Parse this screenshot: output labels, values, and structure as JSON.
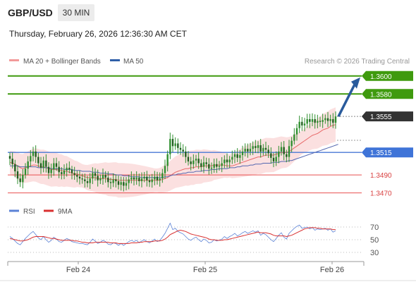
{
  "header": {
    "symbol": "GBP/USD",
    "timeframe": "30 MIN",
    "datetime": "Thursday, February 26, 2026 12:36:30 AM CET"
  },
  "legend": {
    "ma20_label": "MA 20 + Bollinger Bands",
    "ma50_label": "MA 50",
    "credit": "Research © 2026 Trading Central",
    "rsi_label": "RSI",
    "rsi_ma_label": "9MA"
  },
  "colors": {
    "resistance": "#3f9a0e",
    "current": "#333333",
    "pivot": "#4a78d6",
    "support": "#e85050",
    "ma20": "#e86a6a",
    "ma50": "#5567b0",
    "band_fill": "#fadada",
    "candle": "#2f8f2f",
    "arrow": "#2a5b9c",
    "rsi": "#5b82d6",
    "rsi_ma": "#d93030"
  },
  "chart_data": [
    {
      "type": "candlestick",
      "price_range": [
        1.3465,
        1.361
      ],
      "levels": [
        {
          "label": "1.3600",
          "value": 1.36,
          "kind": "resistance"
        },
        {
          "label": "1.3580",
          "value": 1.358,
          "kind": "resistance"
        },
        {
          "label": "1.3555",
          "value": 1.3555,
          "kind": "current"
        },
        {
          "label": "1.3515",
          "value": 1.3515,
          "kind": "pivot"
        },
        {
          "label": "1.3490",
          "value": 1.349,
          "kind": "support"
        },
        {
          "label": "1.3470",
          "value": 1.347,
          "kind": "support"
        }
      ],
      "x_ticks": [
        "Feb 24",
        "Feb 25",
        "Feb 26"
      ],
      "arrow_target": 1.36,
      "closes": [
        1.3508,
        1.3502,
        1.3494,
        1.3486,
        1.3482,
        1.349,
        1.3497,
        1.3505,
        1.3511,
        1.3516,
        1.351,
        1.3503,
        1.3498,
        1.3506,
        1.3499,
        1.3492,
        1.3496,
        1.3503,
        1.3499,
        1.3493,
        1.3491,
        1.3495,
        1.3498,
        1.3496,
        1.3492,
        1.349,
        1.3488,
        1.3486,
        1.3485,
        1.3483,
        1.3481,
        1.3486,
        1.3492,
        1.3489,
        1.3484,
        1.3486,
        1.349,
        1.3487,
        1.3482,
        1.3481,
        1.3485,
        1.3483,
        1.3479,
        1.3482,
        1.3478,
        1.3481,
        1.3485,
        1.3487,
        1.3485,
        1.3487,
        1.3483,
        1.3486,
        1.3488,
        1.3484,
        1.3482,
        1.3485,
        1.3488,
        1.3484,
        1.3486,
        1.3492,
        1.35,
        1.3513,
        1.353,
        1.3522,
        1.3525,
        1.352,
        1.3518,
        1.3516,
        1.351,
        1.3505,
        1.3502,
        1.3506,
        1.3508,
        1.3503,
        1.3499,
        1.3504,
        1.3502,
        1.3497,
        1.3498,
        1.3502,
        1.3499,
        1.35,
        1.3503,
        1.3507,
        1.3504,
        1.3507,
        1.351,
        1.3513,
        1.3509,
        1.3512,
        1.3516,
        1.3519,
        1.3516,
        1.3519,
        1.3522,
        1.352,
        1.3523,
        1.3516,
        1.352,
        1.3518,
        1.3514,
        1.3509,
        1.3505,
        1.351,
        1.3516,
        1.3521,
        1.3513,
        1.351,
        1.3522,
        1.3528,
        1.3535,
        1.3542,
        1.3549,
        1.3545,
        1.3547,
        1.3552,
        1.3549,
        1.3552,
        1.3548,
        1.355,
        1.3549,
        1.3551,
        1.3553,
        1.355,
        1.3552,
        1.3548,
        1.3555
      ],
      "ma20": [
        1.3504,
        1.3503,
        1.3502,
        1.35,
        1.3498,
        1.3497,
        1.3498,
        1.3499,
        1.35,
        1.3501,
        1.3501,
        1.35,
        1.3499,
        1.3499,
        1.3498,
        1.3497,
        1.3496,
        1.3496,
        1.3496,
        1.3495,
        1.3495,
        1.3494,
        1.3494,
        1.3493,
        1.3492,
        1.3491,
        1.3491,
        1.349,
        1.3489,
        1.3488,
        1.3487,
        1.3487,
        1.3487,
        1.3487,
        1.3486,
        1.3486,
        1.3486,
        1.3486,
        1.3485,
        1.3485,
        1.3485,
        1.3485,
        1.3484,
        1.3484,
        1.3484,
        1.3484,
        1.3484,
        1.3484,
        1.3484,
        1.3484,
        1.3484,
        1.3484,
        1.3484,
        1.3484,
        1.3484,
        1.3484,
        1.3484,
        1.3484,
        1.3484,
        1.3485,
        1.3486,
        1.3487,
        1.3489,
        1.3491,
        1.3493,
        1.3494,
        1.3495,
        1.3496,
        1.3497,
        1.3497,
        1.3498,
        1.3498,
        1.3499,
        1.3499,
        1.3499,
        1.35,
        1.35,
        1.35,
        1.35,
        1.3501,
        1.3501,
        1.3501,
        1.3501,
        1.3501,
        1.35,
        1.35,
        1.35,
        1.3501,
        1.3502,
        1.3503,
        1.3504,
        1.3505,
        1.3506,
        1.3507,
        1.3508,
        1.3509,
        1.351,
        1.351,
        1.3511,
        1.3512,
        1.3512,
        1.3512,
        1.3512,
        1.3513,
        1.3514,
        1.3515,
        1.3515,
        1.3515,
        1.3516,
        1.3518,
        1.352,
        1.3522,
        1.3524,
        1.3526,
        1.3528,
        1.353,
        1.3532,
        1.3534,
        1.3535,
        1.3536,
        1.3538,
        1.354,
        1.3541,
        1.3542,
        1.3544,
        1.3545,
        1.3546
      ],
      "ma50": [
        1.35,
        1.35,
        1.35,
        1.35,
        1.3499,
        1.3499,
        1.3499,
        1.3499,
        1.3499,
        1.3499,
        1.3499,
        1.3498,
        1.3498,
        1.3498,
        1.3498,
        1.3498,
        1.3497,
        1.3497,
        1.3497,
        1.3497,
        1.3497,
        1.3496,
        1.3496,
        1.3496,
        1.3496,
        1.3495,
        1.3495,
        1.3495,
        1.3494,
        1.3494,
        1.3494,
        1.3494,
        1.3493,
        1.3493,
        1.3493,
        1.3492,
        1.3492,
        1.3492,
        1.3491,
        1.3491,
        1.3491,
        1.349,
        1.349,
        1.349,
        1.3489,
        1.3489,
        1.3489,
        1.3488,
        1.3488,
        1.3488,
        1.3488,
        1.3487,
        1.3487,
        1.3487,
        1.3487,
        1.3487,
        1.3487,
        1.3487,
        1.3487,
        1.3487,
        1.3488,
        1.3488,
        1.3489,
        1.349,
        1.349,
        1.3491,
        1.3491,
        1.3492,
        1.3492,
        1.3493,
        1.3493,
        1.3493,
        1.3494,
        1.3494,
        1.3494,
        1.3495,
        1.3495,
        1.3495,
        1.3496,
        1.3496,
        1.3496,
        1.3497,
        1.3497,
        1.3497,
        1.3497,
        1.3498,
        1.3498,
        1.3498,
        1.3499,
        1.3499,
        1.35,
        1.35,
        1.35,
        1.3501,
        1.3501,
        1.3502,
        1.3502,
        1.3502,
        1.3503,
        1.3503,
        1.3503,
        1.3503,
        1.3504,
        1.3504,
        1.3504,
        1.3505,
        1.3505,
        1.3505,
        1.3506,
        1.3506,
        1.3507,
        1.3508,
        1.3509,
        1.351,
        1.3511,
        1.3512,
        1.3513,
        1.3514,
        1.3515,
        1.3516,
        1.3517,
        1.3518,
        1.3519,
        1.352,
        1.3521,
        1.3522,
        1.3523,
        1.3524
      ],
      "band_width": 0.0016
    },
    {
      "type": "line",
      "title": "RSI",
      "y_ticks": [
        70,
        50,
        30
      ],
      "ylim": [
        20,
        80
      ],
      "rsi": [
        55,
        52,
        48,
        44,
        42,
        47,
        52,
        56,
        60,
        63,
        58,
        53,
        50,
        55,
        50,
        46,
        49,
        54,
        51,
        47,
        46,
        49,
        52,
        50,
        47,
        46,
        45,
        44,
        44,
        43,
        42,
        46,
        51,
        48,
        44,
        46,
        49,
        47,
        43,
        42,
        45,
        44,
        41,
        44,
        41,
        44,
        47,
        49,
        47,
        49,
        45,
        48,
        50,
        47,
        45,
        48,
        51,
        47,
        49,
        54,
        60,
        68,
        76,
        66,
        68,
        63,
        61,
        59,
        55,
        51,
        49,
        52,
        54,
        50,
        47,
        51,
        49,
        45,
        46,
        50,
        48,
        49,
        51,
        55,
        52,
        55,
        57,
        60,
        56,
        58,
        61,
        63,
        60,
        62,
        64,
        62,
        64,
        57,
        60,
        58,
        54,
        50,
        47,
        52,
        57,
        61,
        54,
        51,
        60,
        64,
        68,
        71,
        73,
        68,
        69,
        70,
        67,
        69,
        65,
        67,
        66,
        67,
        68,
        65,
        67,
        62,
        64
      ],
      "rsi_ma": [
        52,
        51,
        50,
        49,
        48,
        48,
        49,
        50,
        52,
        54,
        55,
        55,
        55,
        55,
        54,
        53,
        52,
        52,
        51,
        50,
        49,
        49,
        49,
        49,
        49,
        48,
        48,
        47,
        46,
        46,
        45,
        45,
        45,
        46,
        46,
        46,
        46,
        46,
        46,
        45,
        45,
        45,
        44,
        44,
        44,
        44,
        44,
        45,
        45,
        45,
        46,
        46,
        47,
        47,
        47,
        47,
        48,
        48,
        48,
        49,
        51,
        54,
        58,
        60,
        62,
        64,
        65,
        64,
        63,
        61,
        59,
        58,
        57,
        56,
        55,
        54,
        53,
        51,
        50,
        50,
        49,
        49,
        49,
        50,
        50,
        51,
        52,
        53,
        54,
        55,
        56,
        57,
        58,
        59,
        60,
        61,
        62,
        61,
        61,
        61,
        60,
        59,
        57,
        56,
        56,
        56,
        56,
        55,
        56,
        57,
        59,
        61,
        63,
        65,
        67,
        68,
        69,
        69,
        69,
        68,
        68,
        67,
        67,
        67,
        67,
        66,
        66
      ]
    }
  ]
}
